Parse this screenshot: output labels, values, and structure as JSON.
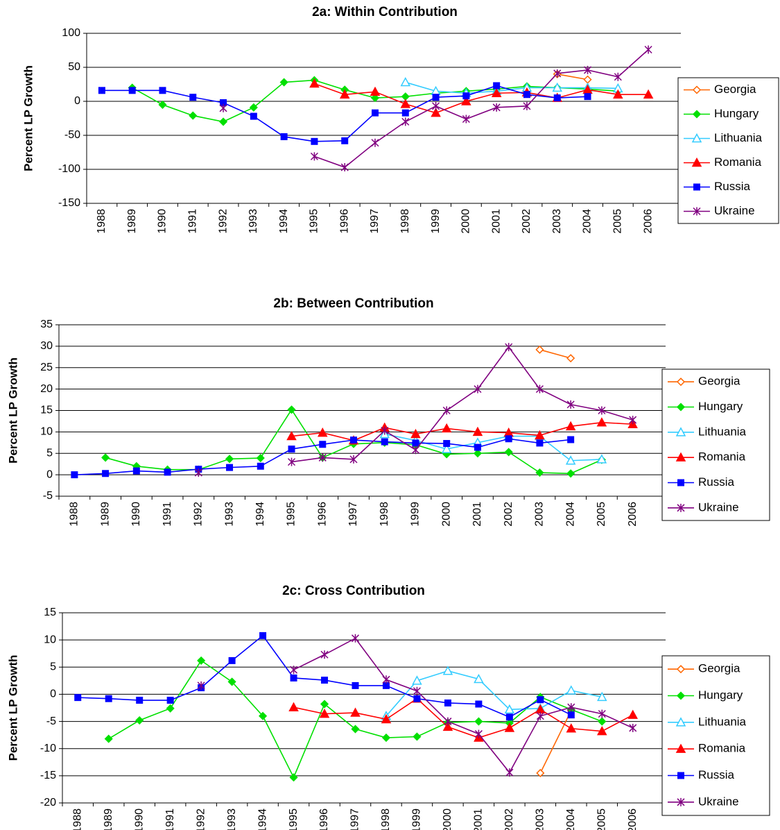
{
  "chart_data": [
    {
      "type": "line",
      "title": "2a: Within Contribution",
      "y_label": "Percent LP Growth",
      "categories": [
        "1988",
        "1989",
        "1990",
        "1991",
        "1992",
        "1993",
        "1994",
        "1995",
        "1996",
        "1997",
        "1998",
        "1999",
        "2000",
        "2001",
        "2002",
        "2003",
        "2004",
        "2005",
        "2006"
      ],
      "ylim": [
        -150,
        100
      ],
      "yticks": [
        -150,
        -100,
        -50,
        0,
        50,
        100
      ],
      "grid": true,
      "series": [
        {
          "name": "Georgia",
          "color": "#FF6600",
          "marker": "open-diamond",
          "values": [
            null,
            null,
            null,
            null,
            null,
            null,
            null,
            null,
            null,
            null,
            null,
            null,
            null,
            null,
            null,
            40,
            32,
            null,
            null
          ]
        },
        {
          "name": "Hungary",
          "color": "#00E000",
          "marker": "diamond",
          "values": [
            null,
            20,
            -5,
            -21,
            -30,
            -9,
            28,
            31,
            17,
            5,
            7,
            12,
            15,
            18,
            22,
            20,
            18,
            15,
            null
          ]
        },
        {
          "name": "Lithuania",
          "color": "#33CCFF",
          "marker": "open-triangle",
          "values": [
            null,
            null,
            null,
            null,
            null,
            null,
            null,
            null,
            null,
            null,
            28,
            15,
            12,
            15,
            20,
            20,
            20,
            19,
            null
          ]
        },
        {
          "name": "Romania",
          "color": "#FF0000",
          "marker": "triangle",
          "values": [
            null,
            null,
            null,
            null,
            null,
            null,
            null,
            26,
            10,
            14,
            -4,
            -17,
            0,
            12,
            13,
            5,
            17,
            10,
            10
          ]
        },
        {
          "name": "Russia",
          "color": "#0000FF",
          "marker": "square",
          "values": [
            16,
            16,
            16,
            6,
            -2,
            -22,
            -52,
            -59,
            -58,
            -17,
            -17,
            6,
            8,
            23,
            10,
            5,
            7,
            null,
            null
          ]
        },
        {
          "name": "Ukraine",
          "color": "#800080",
          "marker": "star",
          "values": [
            null,
            null,
            null,
            null,
            -10,
            null,
            null,
            -81,
            -97,
            -61,
            -30,
            -7,
            -26,
            -9,
            -7,
            41,
            46,
            36,
            76
          ]
        }
      ]
    },
    {
      "type": "line",
      "title": "2b: Between Contribution",
      "y_label": "Percent LP Growth",
      "categories": [
        "1988",
        "1989",
        "1990",
        "1991",
        "1992",
        "1993",
        "1994",
        "1995",
        "1996",
        "1997",
        "1998",
        "1999",
        "2000",
        "2001",
        "2002",
        "2003",
        "2004",
        "2005",
        "2006"
      ],
      "ylim": [
        -5,
        35
      ],
      "yticks": [
        -5,
        0,
        5,
        10,
        15,
        20,
        25,
        30,
        35
      ],
      "grid": true,
      "series": [
        {
          "name": "Georgia",
          "color": "#FF6600",
          "marker": "open-diamond",
          "values": [
            null,
            null,
            null,
            null,
            null,
            null,
            null,
            null,
            null,
            null,
            null,
            null,
            null,
            null,
            null,
            29.2,
            27.2,
            null,
            null
          ]
        },
        {
          "name": "Hungary",
          "color": "#00E000",
          "marker": "diamond",
          "values": [
            null,
            4,
            2,
            1.2,
            1.2,
            3.7,
            3.9,
            15.2,
            4,
            7.2,
            7.5,
            7,
            4.8,
            5,
            5.3,
            0.5,
            0.3,
            3.5,
            null
          ]
        },
        {
          "name": "Lithuania",
          "color": "#33CCFF",
          "marker": "open-triangle",
          "values": [
            null,
            null,
            null,
            null,
            null,
            null,
            null,
            null,
            null,
            null,
            9.5,
            8,
            6,
            7.5,
            9,
            9,
            3.3,
            3.6,
            null
          ]
        },
        {
          "name": "Romania",
          "color": "#FF0000",
          "marker": "triangle",
          "values": [
            null,
            null,
            null,
            null,
            null,
            null,
            null,
            9,
            9.8,
            8,
            11,
            9.5,
            10.8,
            10,
            9.8,
            9.2,
            11.3,
            12.2,
            11.8
          ]
        },
        {
          "name": "Russia",
          "color": "#0000FF",
          "marker": "square",
          "values": [
            0,
            0.3,
            0.9,
            0.6,
            1.3,
            1.7,
            2,
            6,
            7.1,
            8.1,
            7.7,
            7.4,
            7.3,
            6.4,
            8.4,
            7.4,
            8.2,
            null,
            null
          ]
        },
        {
          "name": "Ukraine",
          "color": "#800080",
          "marker": "star",
          "values": [
            null,
            null,
            null,
            null,
            0.5,
            null,
            null,
            3,
            4,
            3.6,
            10.3,
            5.8,
            15,
            20,
            29.8,
            20,
            16.4,
            15,
            12.8
          ]
        }
      ]
    },
    {
      "type": "line",
      "title": "2c: Cross Contribution",
      "y_label": "Percent LP Growth",
      "categories": [
        "1988",
        "1989",
        "1990",
        "1991",
        "1992",
        "1993",
        "1994",
        "1995",
        "1996",
        "1997",
        "1998",
        "1999",
        "2000",
        "2001",
        "2002",
        "2003",
        "2004",
        "2005",
        "2006"
      ],
      "ylim": [
        -20,
        15
      ],
      "yticks": [
        -20,
        -15,
        -10,
        -5,
        0,
        5,
        10,
        15
      ],
      "grid": true,
      "series": [
        {
          "name": "Georgia",
          "color": "#FF6600",
          "marker": "open-diamond",
          "values": [
            null,
            null,
            null,
            null,
            null,
            null,
            null,
            null,
            null,
            null,
            null,
            null,
            null,
            null,
            null,
            -14.5,
            -3,
            null,
            null
          ]
        },
        {
          "name": "Hungary",
          "color": "#00E000",
          "marker": "diamond",
          "values": [
            null,
            -8.2,
            -4.8,
            -2.6,
            6.2,
            2.3,
            -4,
            -15.3,
            -1.8,
            -6.4,
            -8,
            -7.8,
            -5.2,
            -5,
            -5.3,
            -0.5,
            -2.8,
            -5,
            null
          ]
        },
        {
          "name": "Lithuania",
          "color": "#33CCFF",
          "marker": "open-triangle",
          "values": [
            null,
            null,
            null,
            null,
            null,
            null,
            null,
            null,
            null,
            null,
            -4,
            2.5,
            4.3,
            2.8,
            -2.8,
            -2.6,
            0.7,
            -0.5,
            null
          ]
        },
        {
          "name": "Romania",
          "color": "#FF0000",
          "marker": "triangle",
          "values": [
            null,
            null,
            null,
            null,
            null,
            null,
            null,
            -2.4,
            -3.6,
            -3.4,
            -4.6,
            -0.8,
            -6,
            -8,
            -6.2,
            -2.8,
            -6.3,
            -6.8,
            -3.8
          ]
        },
        {
          "name": "Russia",
          "color": "#0000FF",
          "marker": "square",
          "values": [
            -0.6,
            -0.8,
            -1.1,
            -1.1,
            1.2,
            6.2,
            10.8,
            3,
            2.6,
            1.6,
            1.6,
            -0.8,
            -1.6,
            -1.8,
            -4.2,
            -1,
            -3.8,
            null,
            null
          ]
        },
        {
          "name": "Ukraine",
          "color": "#800080",
          "marker": "star",
          "values": [
            null,
            null,
            null,
            null,
            1.6,
            null,
            null,
            4.5,
            7.3,
            10.3,
            2.7,
            0.6,
            -5,
            -7.3,
            -14.4,
            -4,
            -2.4,
            -3.6,
            -6.2
          ]
        }
      ]
    }
  ]
}
